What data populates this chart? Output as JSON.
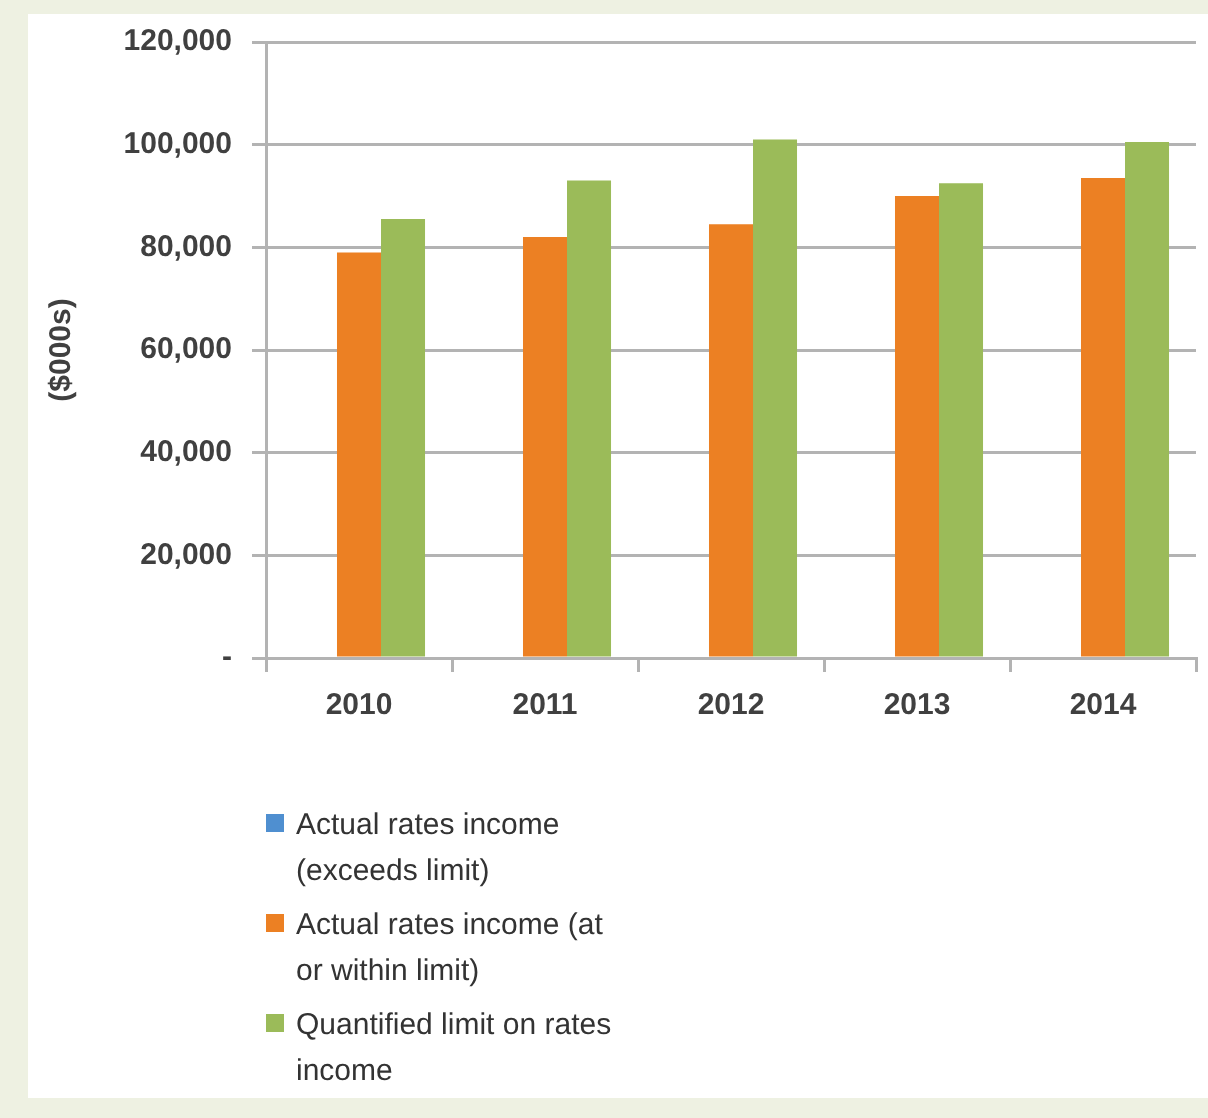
{
  "chart_data": {
    "type": "bar",
    "ylabel": "($000s)",
    "categories": [
      "2010",
      "2011",
      "2012",
      "2013",
      "2014"
    ],
    "series": [
      {
        "name": "Actual rates income (exceeds limit)",
        "color": "#4f8fd0",
        "values": [
          null,
          null,
          null,
          null,
          null
        ]
      },
      {
        "name": "Actual rates income (at or within limit)",
        "color": "#ec8023",
        "values": [
          79000,
          82000,
          84500,
          90000,
          93500
        ]
      },
      {
        "name": "Quantified limit on rates income",
        "color": "#9bbb59",
        "values": [
          85500,
          93000,
          101000,
          92500,
          100500
        ]
      }
    ],
    "ylim": [
      0,
      120000
    ],
    "yticks": [
      {
        "value": 0,
        "label": "-"
      },
      {
        "value": 20000,
        "label": "20,000"
      },
      {
        "value": 40000,
        "label": "40,000"
      },
      {
        "value": 60000,
        "label": "60,000"
      },
      {
        "value": 80000,
        "label": "80,000"
      },
      {
        "value": 100000,
        "label": "100,000"
      },
      {
        "value": 120000,
        "label": "120,000"
      }
    ],
    "grid": "y",
    "legend": "bottom"
  }
}
